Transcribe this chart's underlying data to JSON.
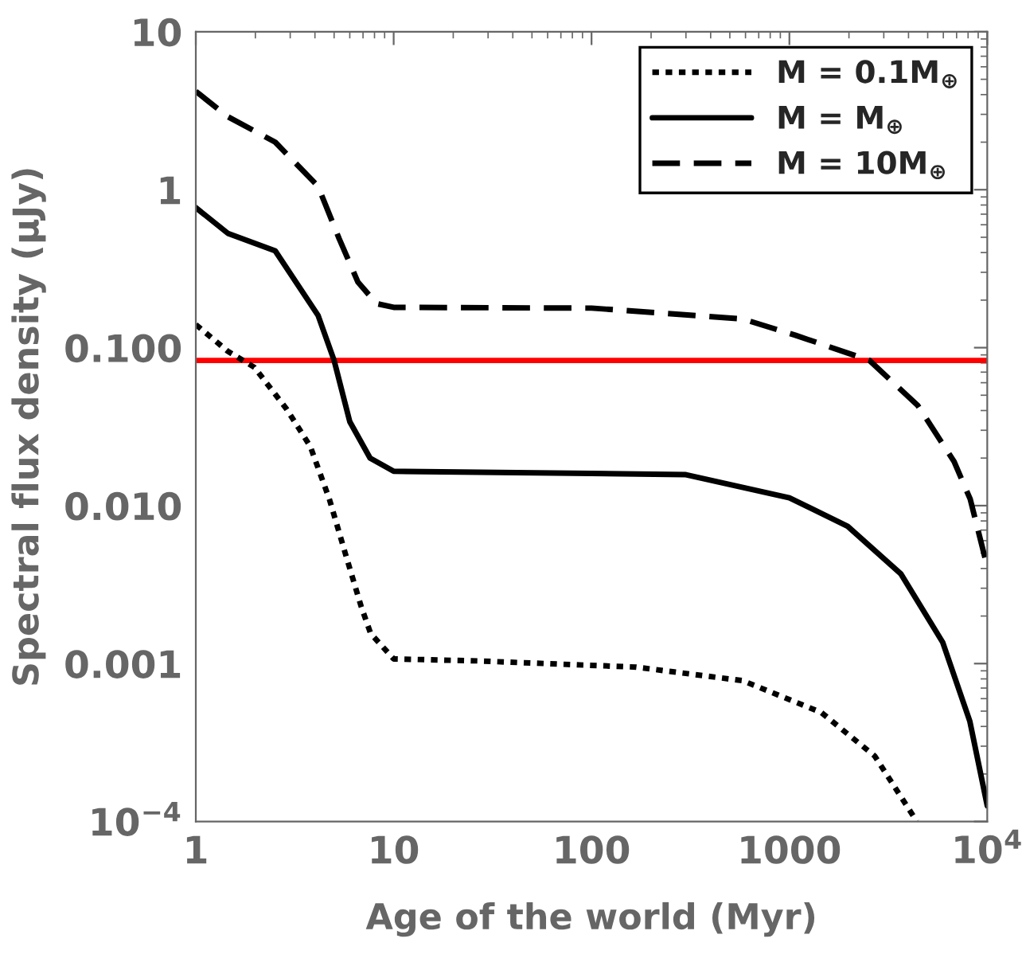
{
  "chart_data": {
    "type": "line",
    "xlabel": "Age of the world (Myr)",
    "ylabel": "Spectral flux density (μJy)",
    "log": "xy",
    "xlim": [
      1,
      10000
    ],
    "ylim": [
      0.0001,
      10
    ],
    "xticks": [
      1,
      10,
      100,
      1000,
      {
        "value": 10000,
        "label": "10$^{4}$"
      }
    ],
    "yticks": [
      {
        "value": 0.0001,
        "label": "10$^{−4}$"
      },
      {
        "value": 0.001,
        "label": "0.001"
      },
      {
        "value": 0.01,
        "label": "0.010"
      },
      {
        "value": 0.1,
        "label": "0.100"
      },
      1,
      10
    ],
    "grid": false,
    "legend": "top right",
    "ref_lines": [
      {
        "axis": "y",
        "value": 0.083,
        "color": "#ff0000"
      }
    ],
    "series": [
      {
        "name": "M = 0.1M$_{⊕}$",
        "color": "#000000",
        "line_style": "dotted",
        "x": [
          1,
          1.45,
          1.98,
          2.87,
          3.79,
          4.73,
          5.69,
          6.85,
          7.65,
          10,
          26.5,
          168,
          580,
          1450,
          2700,
          4160,
          4400
        ],
        "values": [
          0.14,
          0.095,
          0.075,
          0.041,
          0.0237,
          0.011,
          0.005,
          0.0023,
          0.00155,
          0.00107,
          0.00104,
          0.00095,
          0.00078,
          0.00049,
          0.00026,
          0.000112,
          0.0001
        ]
      },
      {
        "name": "M = M$_{⊕}$",
        "color": "#000000",
        "line_style": "solid",
        "x": [
          1,
          1.45,
          2.52,
          4.15,
          5,
          6,
          7.6,
          10,
          100,
          300,
          1000,
          1970,
          3660,
          5960,
          8170,
          10000
        ],
        "values": [
          0.77,
          0.53,
          0.41,
          0.16,
          0.083,
          0.034,
          0.02,
          0.0165,
          0.016,
          0.0157,
          0.0112,
          0.0074,
          0.0037,
          0.00136,
          0.00043,
          0.000126
        ]
      },
      {
        "name": "M = 10M$_{⊕}$",
        "color": "#000000",
        "line_style": "dashed",
        "x": [
          1,
          1.45,
          2.52,
          4.15,
          5.3,
          6.6,
          8.2,
          10,
          100,
          580,
          1070,
          2540,
          4460,
          6800,
          8200,
          10000
        ],
        "values": [
          4.2,
          2.9,
          2.0,
          1.05,
          0.49,
          0.26,
          0.19,
          0.18,
          0.178,
          0.152,
          0.12,
          0.083,
          0.043,
          0.019,
          0.011,
          0.0041
        ]
      }
    ]
  }
}
